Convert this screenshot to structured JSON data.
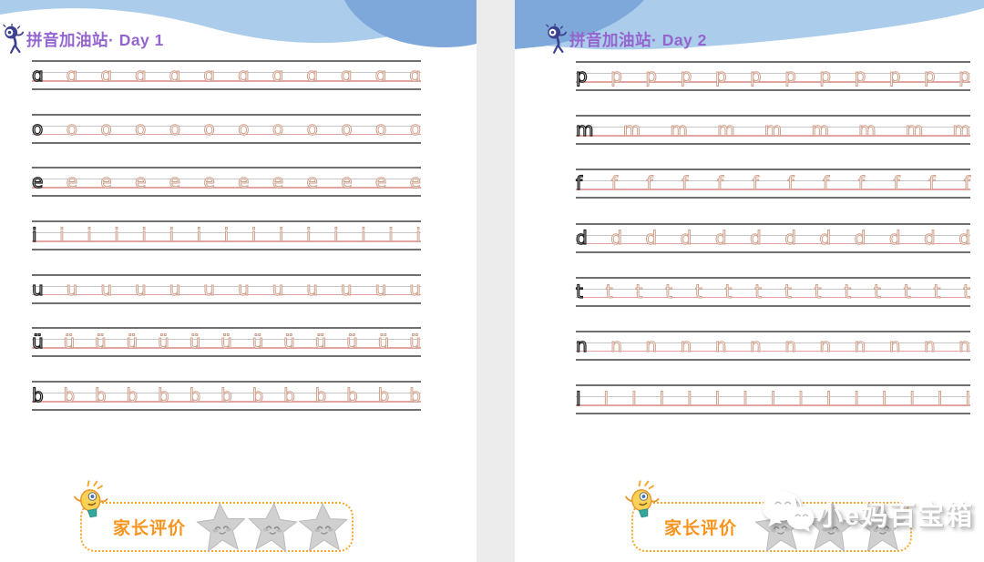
{
  "pages": [
    {
      "header": {
        "title": "拼音加油站· Day 1"
      },
      "rows": [
        {
          "letter": "ɑ",
          "traced": 11
        },
        {
          "letter": "o",
          "traced": 11
        },
        {
          "letter": "e",
          "traced": 11
        },
        {
          "letter": "i",
          "traced": 14
        },
        {
          "letter": "u",
          "traced": 11
        },
        {
          "letter": "ü",
          "traced": 12
        },
        {
          "letter": "b",
          "traced": 12
        }
      ],
      "footer": {
        "label": "家长评价",
        "star_count": 3
      }
    },
    {
      "header": {
        "title": "拼音加油站· Day 2"
      },
      "rows": [
        {
          "letter": "p",
          "traced": 11
        },
        {
          "letter": "m",
          "traced": 8
        },
        {
          "letter": "f",
          "traced": 11
        },
        {
          "letter": "d",
          "traced": 11
        },
        {
          "letter": "t",
          "traced": 13
        },
        {
          "letter": "n",
          "traced": 11
        },
        {
          "letter": "l",
          "traced": 14
        }
      ],
      "footer": {
        "label": "家长评价",
        "star_count": 3
      }
    }
  ],
  "watermark": {
    "text": "小e妈百宝箱",
    "icon": "chat-bubbles-icon"
  },
  "colors": {
    "wave_light": "#abcdeb",
    "wave_dark": "#7fa8da",
    "title_purple": "#9565cf",
    "accent_orange": "#f7941d",
    "trace_tan": "#cfa28e",
    "baseline_pink": "#e3a5a2",
    "guide_dark": "#4f4f4f",
    "guide_gray": "#c6c6c6",
    "star_gray": "#d0d0d0"
  }
}
